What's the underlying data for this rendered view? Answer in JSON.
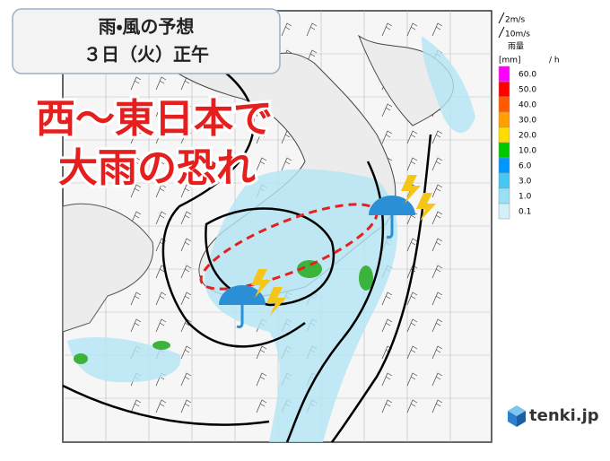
{
  "header": {
    "title": "雨・風の予想",
    "subtitle": "３日（火）正午"
  },
  "headline": [
    "西～東日本で",
    "大雨の恐れ"
  ],
  "legend": {
    "wind": [
      "2m/s",
      "10m/s"
    ],
    "title": "雨量",
    "unit": "[mm]",
    "per": "/ h",
    "levels": [
      {
        "label": "60.0",
        "color": "#ff00ff"
      },
      {
        "label": "50.0",
        "color": "#ff0000"
      },
      {
        "label": "40.0",
        "color": "#ff5a00"
      },
      {
        "label": "30.0",
        "color": "#ffa000"
      },
      {
        "label": "20.0",
        "color": "#ffdc00"
      },
      {
        "label": "10.0",
        "color": "#00c800"
      },
      {
        "label": "6.0",
        "color": "#0096ff"
      },
      {
        "label": "3.0",
        "color": "#46c8f0"
      },
      {
        "label": "1.0",
        "color": "#96e1f5"
      },
      {
        "label": "0.1",
        "color": "#d2f0fa"
      }
    ]
  },
  "logo": "tenki.jp"
}
